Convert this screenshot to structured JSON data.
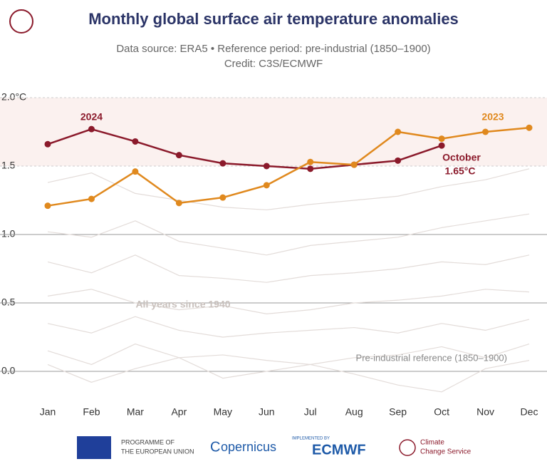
{
  "chart_data": {
    "type": "line",
    "title": "Monthly global surface air temperature anomalies",
    "subtitle": [
      "Data source: ERA5 • Reference period: pre-industrial (1850–1900)",
      "Credit: C3S/ECMWF"
    ],
    "categories": [
      "Jan",
      "Feb",
      "Mar",
      "Apr",
      "May",
      "Jun",
      "Jul",
      "Aug",
      "Sep",
      "Oct",
      "Nov",
      "Dec"
    ],
    "series": [
      {
        "name": "2024",
        "color": "#8b1a2b",
        "values": [
          1.66,
          1.77,
          1.68,
          1.58,
          1.52,
          1.5,
          1.48,
          1.51,
          1.54,
          1.65,
          null,
          null
        ]
      },
      {
        "name": "2023",
        "color": "#e0891e",
        "values": [
          1.21,
          1.26,
          1.46,
          1.23,
          1.27,
          1.36,
          1.53,
          1.51,
          1.75,
          1.7,
          1.75,
          1.78
        ]
      }
    ],
    "background_color": "#e3dcd9",
    "background_series": [
      {
        "values": [
          1.38,
          1.45,
          1.3,
          1.25,
          1.2,
          1.18,
          1.22,
          1.25,
          1.28,
          1.35,
          1.4,
          1.48
        ]
      },
      {
        "values": [
          1.02,
          0.98,
          1.1,
          0.95,
          0.9,
          0.85,
          0.92,
          0.95,
          0.98,
          1.05,
          1.1,
          1.15
        ]
      },
      {
        "values": [
          0.8,
          0.72,
          0.85,
          0.7,
          0.68,
          0.65,
          0.7,
          0.72,
          0.75,
          0.8,
          0.78,
          0.85
        ]
      },
      {
        "values": [
          0.55,
          0.6,
          0.5,
          0.45,
          0.48,
          0.42,
          0.45,
          0.5,
          0.52,
          0.55,
          0.6,
          0.58
        ]
      },
      {
        "values": [
          0.35,
          0.28,
          0.4,
          0.3,
          0.25,
          0.28,
          0.3,
          0.32,
          0.28,
          0.35,
          0.3,
          0.38
        ]
      },
      {
        "values": [
          0.15,
          0.05,
          0.2,
          0.1,
          0.12,
          0.08,
          0.05,
          0.1,
          0.12,
          0.18,
          0.1,
          0.2
        ]
      },
      {
        "values": [
          0.05,
          -0.08,
          0.02,
          0.1,
          -0.05,
          0.0,
          0.05,
          -0.02,
          -0.1,
          -0.15,
          0.02,
          0.08
        ]
      }
    ],
    "ylim": [
      -0.2,
      2.0
    ],
    "yticks": [
      {
        "value": 0,
        "label": "0.0"
      },
      0.5,
      {
        "value": 1,
        "label": "1.0"
      },
      1.5,
      {
        "value": 2,
        "label": "2.0°C"
      }
    ],
    "band": [
      1.5,
      2.0
    ],
    "annotations": {
      "all_years": "All years since 1940",
      "reference": "Pre-industrial reference (1850–1900)",
      "october": "October",
      "october_value": "1.65°C"
    }
  },
  "footer": {
    "eu": [
      "PROGRAMME OF",
      "THE EUROPEAN UNION"
    ],
    "copernicus": "opernicus",
    "implemented": "IMPLEMENTED BY",
    "ecmwf": "ECMWF",
    "c3s": [
      "Climate",
      "Change Service"
    ]
  }
}
